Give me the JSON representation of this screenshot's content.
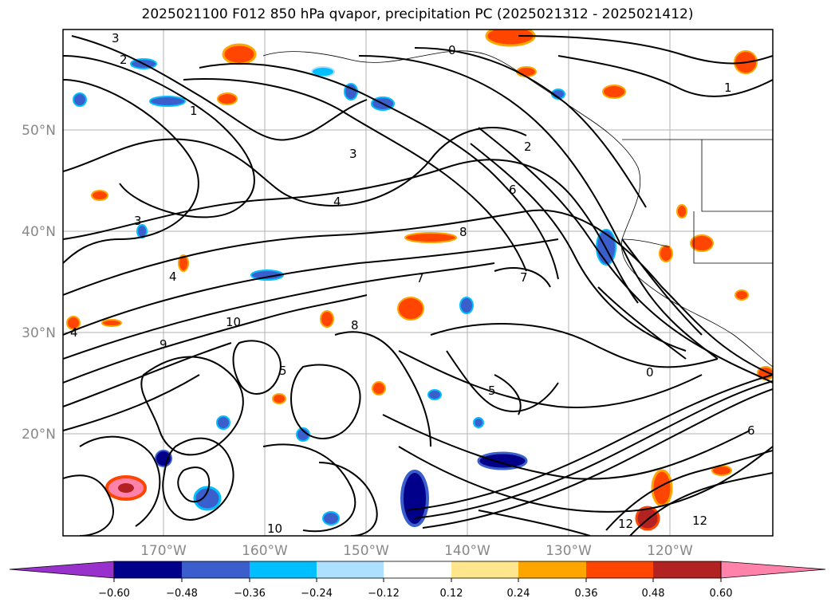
{
  "title": "2025021100 F012 850 hPa qvapor, precipitation PC (2025021312 - 2025021412)",
  "lat_labels": [
    "50°N",
    "40°N",
    "30°N",
    "20°N"
  ],
  "lon_labels": [
    "170°W",
    "160°W",
    "150°W",
    "140°W",
    "130°W",
    "120°W"
  ],
  "contour_labels": [
    "3",
    "2",
    "1",
    "0",
    "3",
    "4",
    "5",
    "6",
    "7",
    "8",
    "9",
    "10",
    "12"
  ],
  "colorbar": {
    "tick_labels": [
      "−0.60",
      "−0.48",
      "−0.36",
      "−0.24",
      "−0.12",
      "0.12",
      "0.24",
      "0.36",
      "0.48",
      "0.60"
    ],
    "colors": [
      "#9932CC",
      "#00008B",
      "#3A5FCD",
      "#00BFFF",
      "#ADDFFF",
      "#FFFFFF",
      "#FFE68C",
      "#FFA500",
      "#FF4500",
      "#B22222",
      "#FF82AB"
    ]
  }
}
